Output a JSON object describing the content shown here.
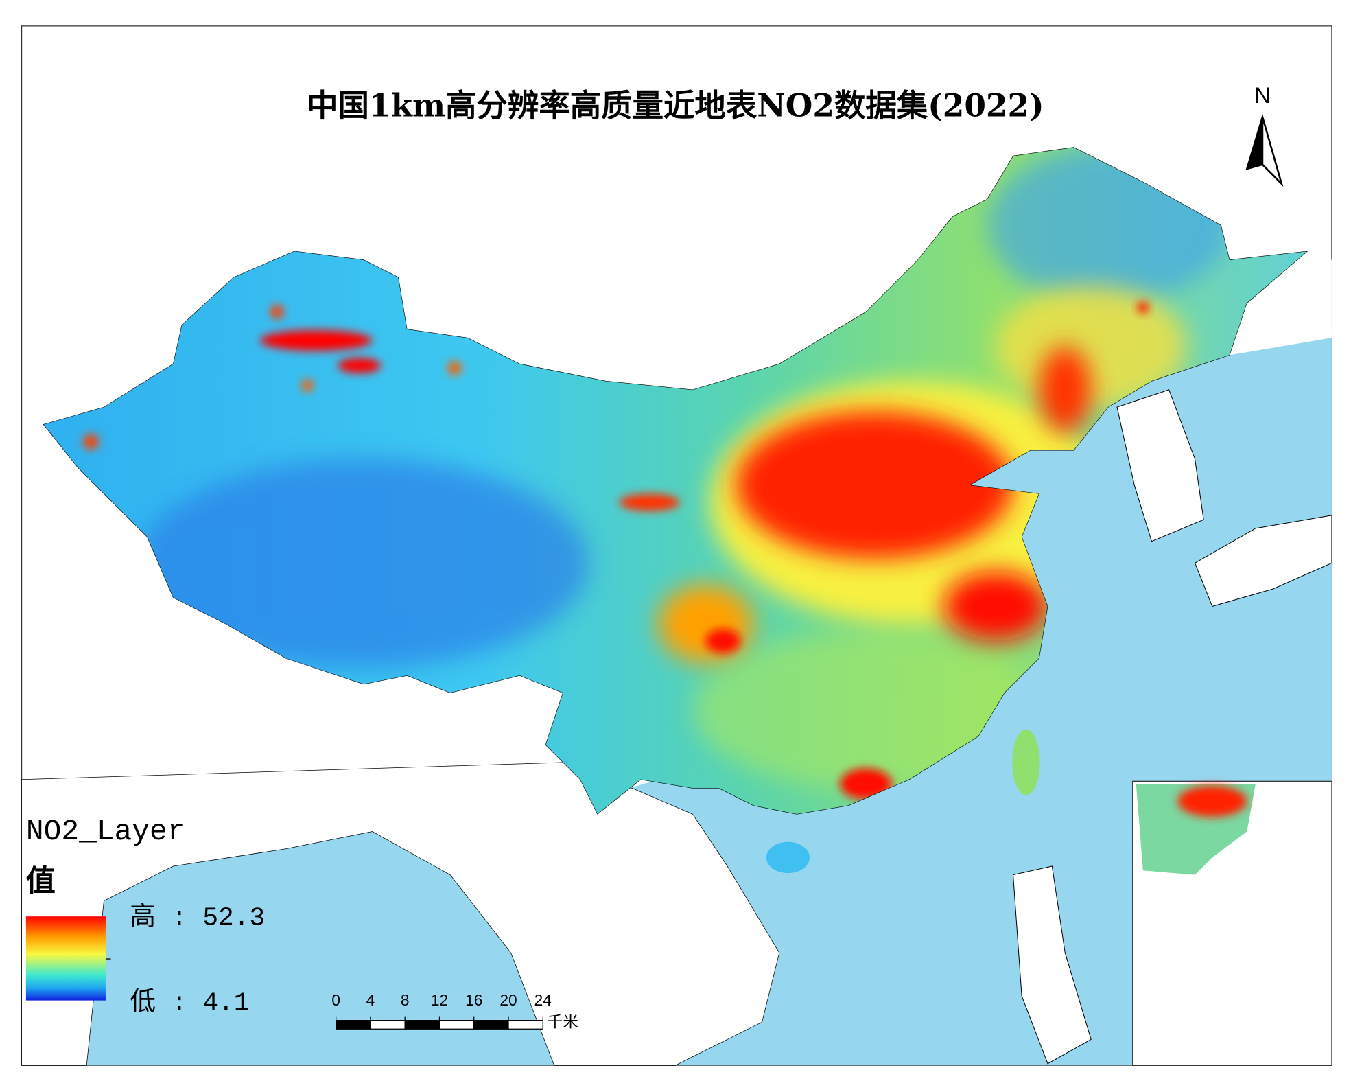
{
  "title": "中国1km高分辨率高质量近地表NO2数据集(2022)",
  "north_arrow": "N",
  "legend": {
    "layer": "NO2_Layer",
    "field": "值",
    "high": "高 : 52.3",
    "low": "低 : 4.1"
  },
  "scale_bar": {
    "ticks": [
      0,
      4,
      8,
      12,
      16,
      20,
      24
    ],
    "unit": "千米"
  }
}
